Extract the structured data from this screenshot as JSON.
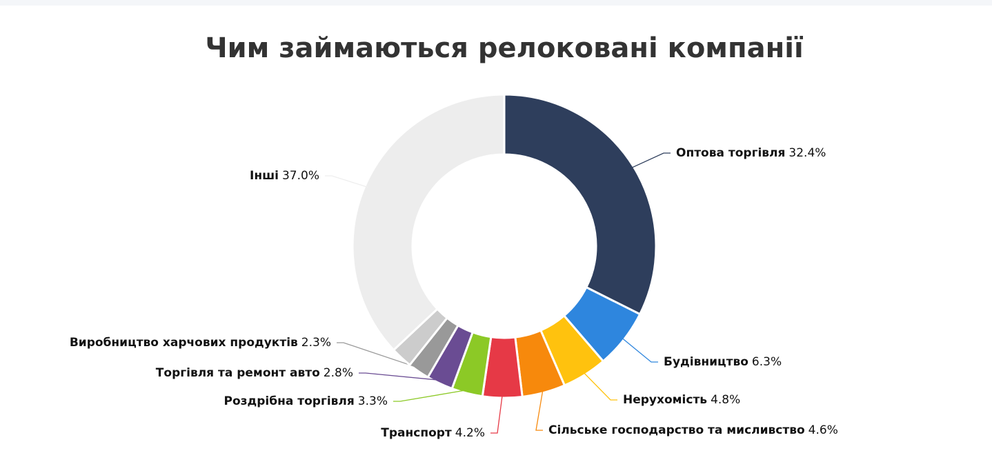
{
  "chart_data": {
    "type": "donut",
    "title": "Чим займаються релоковані компанії",
    "categories": [
      "Оптова торгівля",
      "Будівництво",
      "Нерухомість",
      "Сільське господарство та мисливство",
      "Транспорт",
      "Роздрібна торгівля",
      "Торгівля та ремонт авто",
      "Виробництво харчових продуктів",
      null,
      "Інші"
    ],
    "values": [
      32.4,
      6.3,
      4.8,
      4.6,
      4.2,
      3.3,
      2.8,
      2.3,
      2.3,
      37.0
    ],
    "value_labels": [
      "32.4%",
      "6.3%",
      "4.8%",
      "4.6%",
      "4.2%",
      "3.3%",
      "2.8%",
      "2.3%",
      null,
      "37.0%"
    ],
    "colors": [
      "#2e3e5c",
      "#2e86de",
      "#ffc20e",
      "#f7890c",
      "#e63946",
      "#8cc926",
      "#6a4c93",
      "#999999",
      "#cccccc",
      "#ededed"
    ]
  }
}
